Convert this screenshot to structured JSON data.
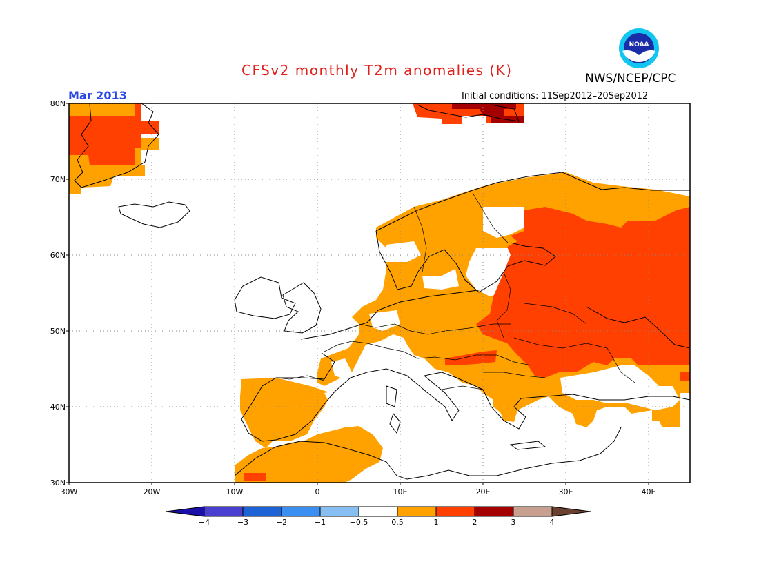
{
  "header": {
    "title": "CFSv2 monthly T2m anomalies (K)",
    "organization": "NWS/NCEP/CPC",
    "logo_text": "NOAA",
    "month": "Mar 2013",
    "initial_conditions": "Initial conditions: 11Sep2012–20Sep2012"
  },
  "axes": {
    "lon_labels": [
      "30W",
      "20W",
      "10W",
      "0",
      "10E",
      "20E",
      "30E",
      "40E"
    ],
    "lat_labels": [
      "80N",
      "70N",
      "60N",
      "50N",
      "40N",
      "30N"
    ]
  },
  "colorbar": {
    "bins": [
      {
        "color": "#1a0fa8"
      },
      {
        "color": "#4b3fd2"
      },
      {
        "color": "#1e63d6"
      },
      {
        "color": "#3b8ff0"
      },
      {
        "color": "#87bff2"
      },
      {
        "color": "#ffffff"
      },
      {
        "color": "#ffa200"
      },
      {
        "color": "#ff4000"
      },
      {
        "color": "#a50000"
      },
      {
        "color": "#c8a090"
      },
      {
        "color": "#6b4030"
      }
    ],
    "tick_labels": [
      "−4",
      "−3",
      "−2",
      "−1",
      "−0.5",
      "0.5",
      "1",
      "2",
      "3",
      "4"
    ]
  }
}
